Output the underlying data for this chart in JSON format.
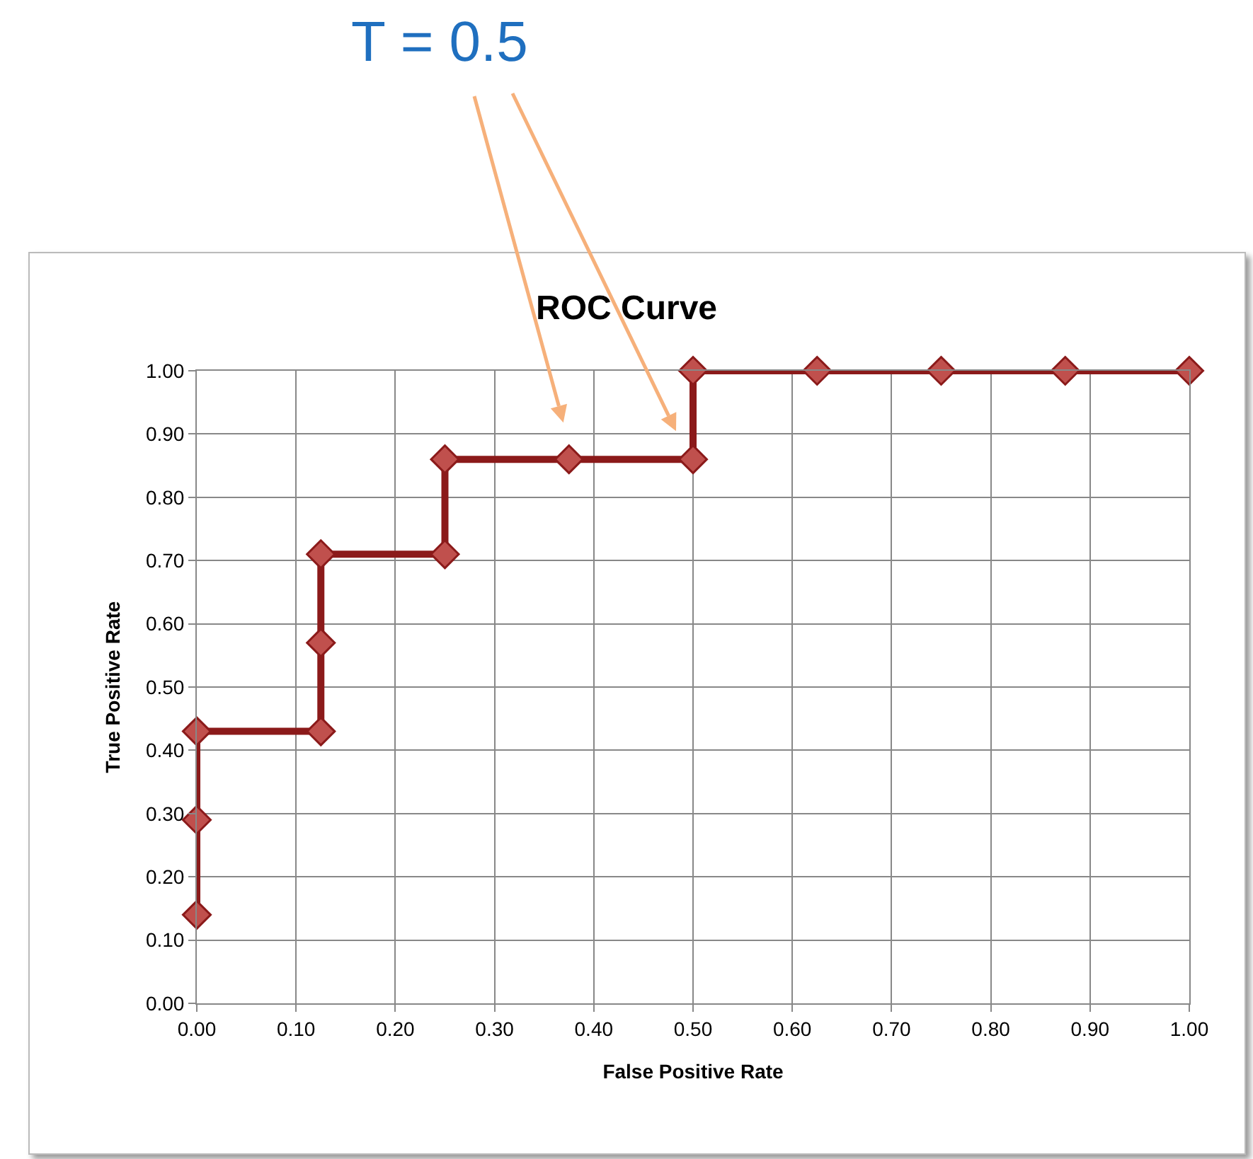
{
  "chart_data": {
    "type": "line",
    "title": "ROC Curve",
    "xlabel": "False Positive Rate",
    "ylabel": "True Positive Rate",
    "x": [
      0,
      0,
      0,
      0.125,
      0.125,
      0.125,
      0.25,
      0.25,
      0.375,
      0.5,
      0.5,
      0.625,
      0.75,
      0.875,
      1
    ],
    "series": [
      {
        "color": "#8b1a1a",
        "values": [
          0.14,
          0.29,
          0.43,
          0.43,
          0.57,
          0.71,
          0.71,
          0.86,
          0.86,
          0.86,
          1,
          1,
          1,
          1,
          1
        ]
      }
    ],
    "xlim": [
      0,
      1
    ],
    "ylim": [
      0,
      1
    ],
    "xticks": [
      {
        "value": 0,
        "label": "0.00"
      },
      {
        "value": 0.1,
        "label": "0.10"
      },
      {
        "value": 0.2,
        "label": "0.20"
      },
      {
        "value": 0.3,
        "label": "0.30"
      },
      {
        "value": 0.4,
        "label": "0.40"
      },
      {
        "value": 0.5,
        "label": "0.50"
      },
      {
        "value": 0.6,
        "label": "0.60"
      },
      {
        "value": 0.7,
        "label": "0.70"
      },
      {
        "value": 0.8,
        "label": "0.80"
      },
      {
        "value": 0.9,
        "label": "0.90"
      },
      {
        "value": 1,
        "label": "1.00"
      }
    ],
    "yticks": [
      {
        "value": 0,
        "label": "0.00"
      },
      {
        "value": 0.1,
        "label": "0.10"
      },
      {
        "value": 0.2,
        "label": "0.20"
      },
      {
        "value": 0.3,
        "label": "0.30"
      },
      {
        "value": 0.4,
        "label": "0.40"
      },
      {
        "value": 0.5,
        "label": "0.50"
      },
      {
        "value": 0.6,
        "label": "0.60"
      },
      {
        "value": 0.7,
        "label": "0.70"
      },
      {
        "value": 0.8,
        "label": "0.80"
      },
      {
        "value": 0.9,
        "label": "0.90"
      },
      {
        "value": 1,
        "label": "1.00"
      }
    ],
    "annotations": [
      "T = 0.5"
    ],
    "grid": true,
    "marker": "diamond",
    "line_style": "solid"
  }
}
